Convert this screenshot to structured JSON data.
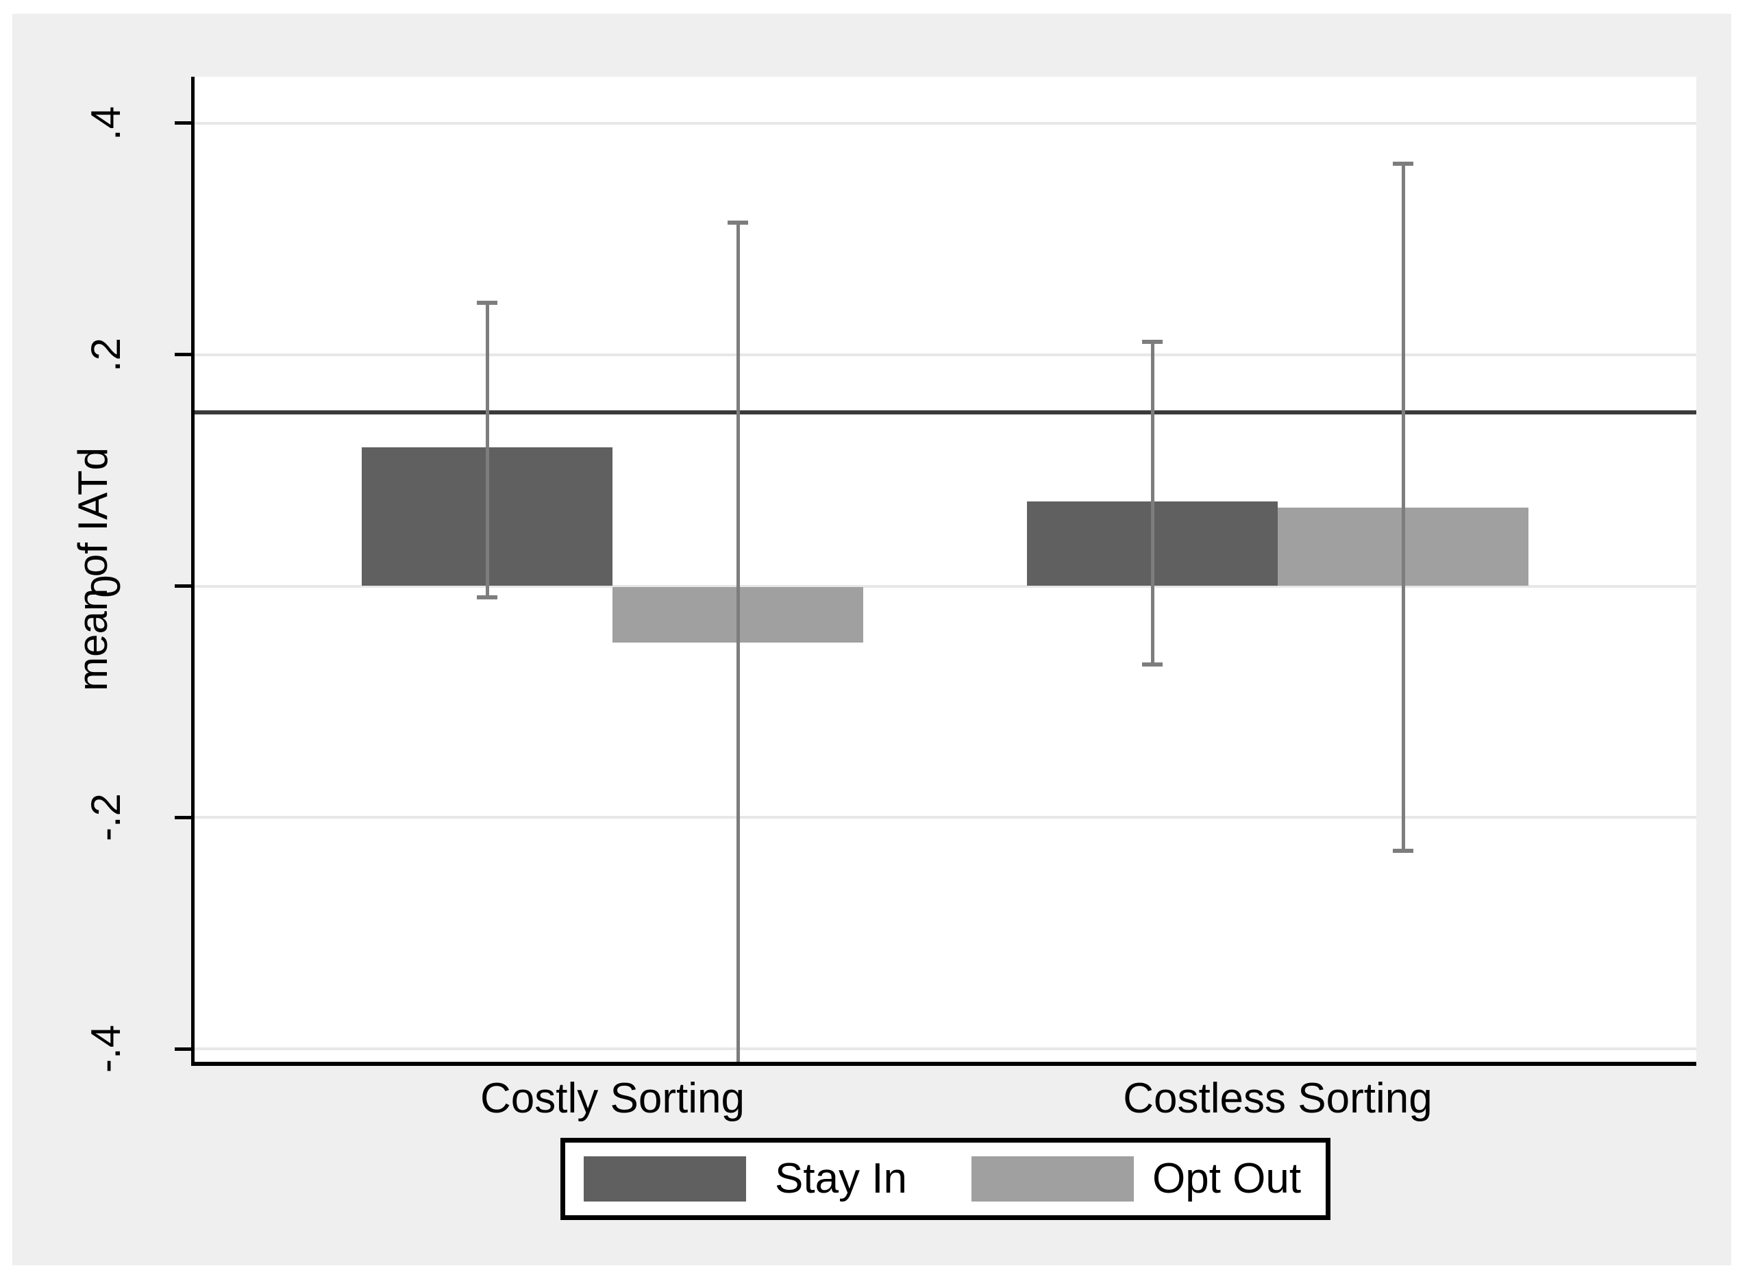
{
  "chart_data": {
    "type": "bar",
    "title": "",
    "xlabel": "",
    "ylabel": "mean of IATd",
    "categories": [
      "Costly Sorting",
      "Costless Sorting"
    ],
    "series": [
      {
        "name": "Stay In",
        "color": "#606060",
        "values": [
          0.12,
          0.073
        ],
        "ci_low": [
          -0.01,
          -0.068
        ],
        "ci_high": [
          0.245,
          0.211
        ],
        "ci_low_clipped": [
          false,
          false
        ]
      },
      {
        "name": "Opt Out",
        "color": "#a0a0a0",
        "values": [
          -0.048,
          0.068
        ],
        "ci_low": [
          -0.41,
          -0.229
        ],
        "ci_high": [
          0.314,
          0.365
        ],
        "ci_low_clipped": [
          true,
          false
        ]
      }
    ],
    "reference_line": 0.15,
    "yticks": [
      0.4,
      0.2,
      0,
      -0.2,
      -0.4
    ],
    "ytick_labels": [
      ".4",
      ".2",
      "0",
      "-.2",
      "-.4"
    ],
    "ylim": [
      -0.411,
      0.44
    ],
    "grid": true,
    "legend_position": "bottom",
    "colors": {
      "canvas_background": "#efefef",
      "plot_background": "#ffffff",
      "gridline": "#e7e7e7",
      "axis": "#000000",
      "reference_line": "#3a3a3a",
      "errorbar": "#7d7d7d",
      "text": "#000000",
      "legend_background": "#ffffff",
      "legend_border": "#000000"
    }
  }
}
